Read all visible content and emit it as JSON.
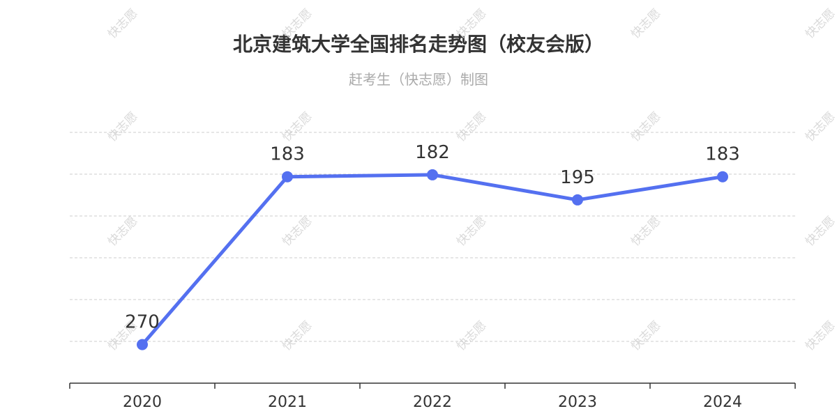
{
  "title": "北京建筑大学全国排名走势图（校友会版）",
  "subtitle": "赶考生（快志愿）制图",
  "watermark": "快志愿",
  "colors": {
    "line": "#5470f0",
    "grid": "#cccccc",
    "axis": "#333333",
    "label": "#333333"
  },
  "chart_data": {
    "type": "line",
    "categories": [
      "2020",
      "2021",
      "2022",
      "2023",
      "2024"
    ],
    "series": [
      {
        "values": [
          270,
          183,
          182,
          195,
          183
        ]
      }
    ],
    "data_labels": [
      "270",
      "183",
      "182",
      "195",
      "183"
    ],
    "y_inverse": true,
    "ylim": [
      160,
      290
    ],
    "grid": true,
    "grid_style": "dashed"
  }
}
